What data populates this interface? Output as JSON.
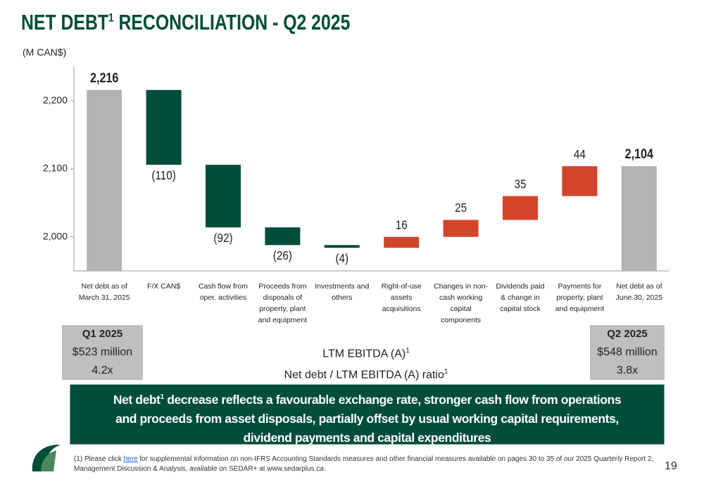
{
  "title": {
    "text": "NET DEBT",
    "sup": "1",
    "rest": " RECONCILIATION - Q2 2025"
  },
  "unit": "(M CAN$)",
  "chart_data": {
    "type": "waterfall",
    "categories": [
      "Net debt as of March 31, 2025",
      "F/X CAN$",
      "Cash flow from oper. activities",
      "Proceeds from disposals of property, plant and equipment",
      "Investments and others",
      "Right-of-use assets acquisitions",
      "Changes in non-cash working capital components",
      "Dividends paid & change in capital stock",
      "Payments for property, plant and equipment",
      "Net debt as of June 30, 2025"
    ],
    "values": [
      2216,
      -110,
      -92,
      -26,
      -4,
      16,
      25,
      35,
      44,
      2104
    ],
    "value_labels": [
      "2,216",
      "(110)",
      "(92)",
      "(26)",
      "(4)",
      "16",
      "25",
      "35",
      "44",
      "2,104"
    ],
    "ylim": [
      1950,
      2250
    ],
    "yticks": [
      {
        "value": 2000,
        "label": "2,000"
      },
      {
        "value": 2100,
        "label": "2,100"
      },
      {
        "value": 2200,
        "label": "2,200"
      }
    ],
    "grid": false,
    "total_color": "#b3b3b3",
    "decrease_color": "#004d3a",
    "increase_color": "#d4442a"
  },
  "summary": {
    "left": {
      "period": "Q1 2025",
      "ebitda": "$523 million",
      "ratio": "4.2x"
    },
    "middle": {
      "ebitda": "LTM EBITDA (A)",
      "ebitda_sup": "1",
      "ratio": "Net debt / LTM EBITDA (A) ratio",
      "ratio_sup": "1"
    },
    "right": {
      "period": "Q2 2025",
      "ebitda": "$548 million",
      "ratio": "3.8x"
    }
  },
  "banner": {
    "lead": "Net debt",
    "sup": "1",
    "text": " decrease reflects a favourable exchange rate, stronger cash flow from operations and proceeds from asset disposals, partially offset by usual working capital requirements, dividend payments and capital expenditures"
  },
  "footnote": {
    "before": "(1) Please click ",
    "link": "here",
    "after": " for supplemental information on non-IFRS Accounting Standards measures and other financial measures available on pages 30 to 35 of our 2025 Quarterly Report 2, Management Discussion & Analysis, available on SEDAR+ at www.sedarplus.ca."
  },
  "page_number": "19"
}
